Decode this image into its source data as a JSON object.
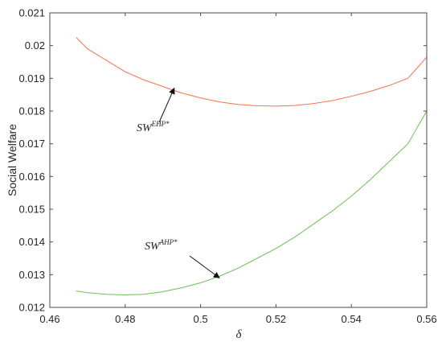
{
  "chart_data": {
    "type": "line",
    "title": "",
    "xlabel": "δ",
    "ylabel": "Social Welfare",
    "xlim": [
      0.46,
      0.56
    ],
    "ylim": [
      0.012,
      0.021
    ],
    "xticks": [
      0.46,
      0.48,
      0.5,
      0.52,
      0.54,
      0.56
    ],
    "xtick_labels": [
      "0.46",
      "0.48",
      "0.5",
      "0.52",
      "0.54",
      "0.56"
    ],
    "yticks": [
      0.012,
      0.013,
      0.014,
      0.015,
      0.016,
      0.017,
      0.018,
      0.019,
      0.02,
      0.021
    ],
    "ytick_labels": [
      "0.012",
      "0.013",
      "0.014",
      "0.015",
      "0.016",
      "0.017",
      "0.018",
      "0.019",
      "0.02",
      "0.021"
    ],
    "grid": false,
    "legend": "none",
    "series": [
      {
        "color": "#f0744c",
        "x": [
          0.467,
          0.47,
          0.475,
          0.48,
          0.485,
          0.49,
          0.495,
          0.5,
          0.505,
          0.51,
          0.515,
          0.52,
          0.525,
          0.53,
          0.535,
          0.54,
          0.545,
          0.55,
          0.555,
          0.56
        ],
        "y": [
          0.02025,
          0.0199,
          0.01955,
          0.0192,
          0.01895,
          0.01875,
          0.01855,
          0.0184,
          0.01828,
          0.0182,
          0.01816,
          0.01815,
          0.01817,
          0.01823,
          0.01832,
          0.01845,
          0.0186,
          0.01878,
          0.019,
          0.01965
        ]
      },
      {
        "color": "#6dbf55",
        "x": [
          0.467,
          0.47,
          0.475,
          0.48,
          0.485,
          0.49,
          0.495,
          0.5,
          0.505,
          0.51,
          0.515,
          0.52,
          0.525,
          0.53,
          0.535,
          0.54,
          0.545,
          0.55,
          0.555,
          0.56
        ],
        "y": [
          0.0125,
          0.01245,
          0.0124,
          0.01238,
          0.0124,
          0.01248,
          0.0126,
          0.01275,
          0.01295,
          0.0132,
          0.0135,
          0.0138,
          0.01415,
          0.01455,
          0.01495,
          0.0154,
          0.0159,
          0.01645,
          0.017,
          0.018
        ]
      }
    ],
    "annotations": [
      {
        "text": "SW",
        "superscript": "EHP*",
        "arrow_to": [
          0.493,
          0.0187
        ]
      },
      {
        "text": "SW",
        "superscript": "AHP*",
        "arrow_to": [
          0.505,
          0.0129
        ]
      }
    ]
  }
}
